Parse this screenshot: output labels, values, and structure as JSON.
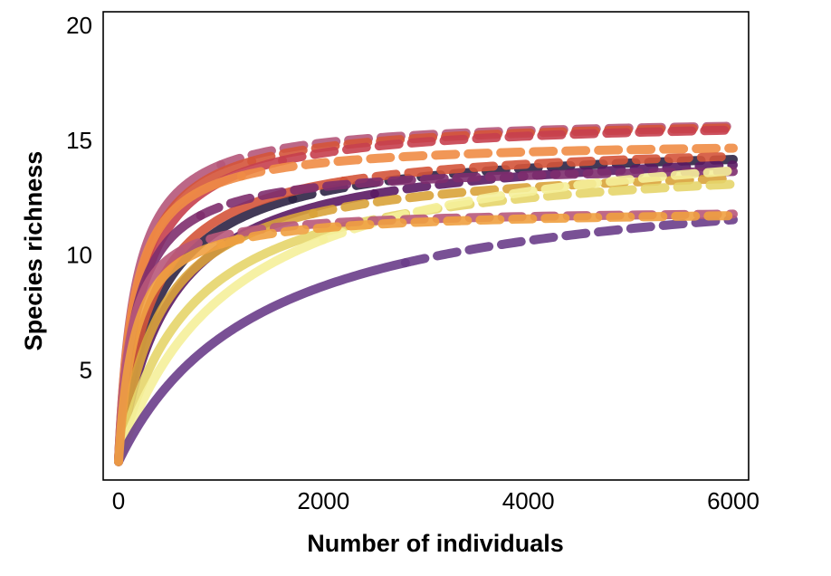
{
  "chart_data": {
    "type": "line",
    "title": "",
    "xlabel": "Number of individuals",
    "ylabel": "Species richness",
    "xlim": [
      -150,
      6150
    ],
    "ylim": [
      0.2,
      20.6
    ],
    "xticks": [
      0,
      2000,
      4000,
      6000
    ],
    "yticks": [
      5,
      10,
      15,
      20
    ],
    "xtick_labels": [
      "0",
      "2000",
      "4000",
      "6000"
    ],
    "ytick_labels": [
      "5",
      "10",
      "15",
      "20"
    ],
    "grid": false,
    "legend": "none",
    "series": [
      {
        "color": "#b5567a",
        "asymptote": 16,
        "rate": 160,
        "observed_n": 1000,
        "max_n": 6000
      },
      {
        "color": "#d4543a",
        "asymptote": 16,
        "rate": 190,
        "observed_n": 1300,
        "max_n": 6000
      },
      {
        "color": "#c63f4e",
        "asymptote": 16,
        "rate": 230,
        "observed_n": 1600,
        "max_n": 6000
      },
      {
        "color": "#f08c45",
        "asymptote": 15,
        "rate": 150,
        "observed_n": 1200,
        "max_n": 6000
      },
      {
        "color": "#2e2345",
        "asymptote": 15,
        "rate": 380,
        "observed_n": 1700,
        "max_n": 6000
      },
      {
        "color": "#d4543a",
        "asymptote": 15,
        "rate": 320,
        "observed_n": 2200,
        "max_n": 6000
      },
      {
        "color": "#5a1a63",
        "asymptote": 15,
        "rate": 500,
        "observed_n": 2500,
        "max_n": 6000
      },
      {
        "color": "#7e2e6e",
        "asymptote": 14,
        "rate": 170,
        "observed_n": 800,
        "max_n": 6000
      },
      {
        "color": "#d9a33a",
        "asymptote": 14.2,
        "rate": 420,
        "observed_n": 1900,
        "max_n": 6000
      },
      {
        "color": "#e6d56a",
        "asymptote": 14.5,
        "rate": 700,
        "observed_n": 2300,
        "max_n": 6000
      },
      {
        "color": "#f5ef9a",
        "asymptote": 16,
        "rate": 1100,
        "observed_n": 2000,
        "max_n": 6000
      },
      {
        "color": "#6a3d8a",
        "asymptote": 14,
        "rate": 1400,
        "observed_n": 2800,
        "max_n": 6000
      },
      {
        "color": "#b8587a",
        "asymptote": 12,
        "rate": 120,
        "observed_n": 600,
        "max_n": 6000
      },
      {
        "color": "#f0a040",
        "asymptote": 12,
        "rate": 160,
        "observed_n": 1000,
        "max_n": 6000
      }
    ]
  }
}
